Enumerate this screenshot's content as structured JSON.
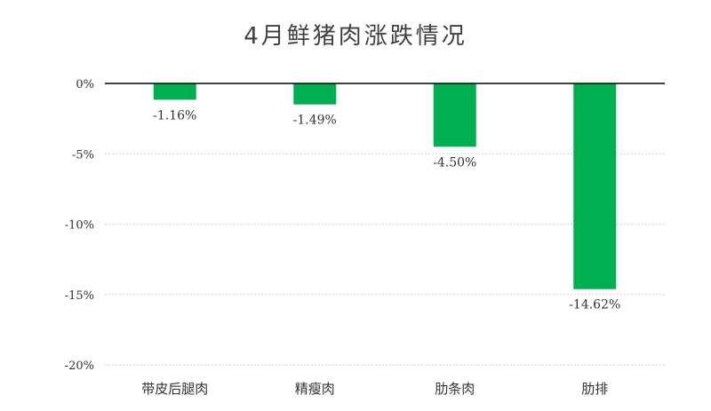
{
  "chart_data": {
    "type": "bar",
    "title": "4月鲜猪肉涨跌情况",
    "xlabel": "",
    "ylabel": "",
    "categories": [
      "带皮后腿肉",
      "精瘦肉",
      "肋条肉",
      "肋排"
    ],
    "values": [
      -1.16,
      -1.49,
      -4.5,
      -14.62
    ],
    "data_labels": [
      "-1.16%",
      "-1.49%",
      "-4.50%",
      "-14.62%"
    ],
    "ylim": [
      -20,
      0
    ],
    "yticks": [
      0,
      -5,
      -10,
      -15,
      -20
    ],
    "ytick_labels": [
      "0%",
      "-5%",
      "-10%",
      "-15%",
      "-20%"
    ],
    "grid": "horizontal dotted",
    "legend": "none",
    "bar_color": "#00b050",
    "axis_color": "#000000",
    "grid_color": "#bfbfbf"
  }
}
